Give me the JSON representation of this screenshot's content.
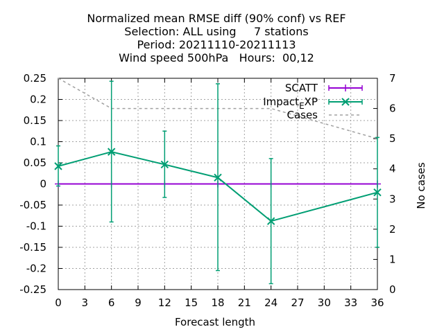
{
  "chart_data": {
    "type": "line",
    "title_lines": [
      "Normalized mean RMSE diff (90% conf) vs REF",
      "Selection: ALL using     7 stations",
      "Period: 20211110-20211113",
      "Wind speed 500hPa   Hours:  00,12"
    ],
    "xlabel": "Forecast length",
    "ylabel": "",
    "y2label": "No cases",
    "xlim": [
      0,
      36
    ],
    "ylim": [
      -0.25,
      0.25
    ],
    "y2lim": [
      0,
      7
    ],
    "x_ticks": [
      0,
      3,
      6,
      9,
      12,
      15,
      18,
      21,
      24,
      27,
      30,
      33,
      36
    ],
    "y_ticks": [
      -0.25,
      -0.2,
      -0.15,
      -0.1,
      -0.05,
      0,
      0.05,
      0.1,
      0.15,
      0.2,
      0.25
    ],
    "y_tick_labels": [
      "-0.25",
      "-0.2",
      "-0.15",
      "-0.1",
      "-0.05",
      "0",
      "0.05",
      "0.1",
      "0.15",
      "0.2",
      "0.25"
    ],
    "y2_ticks": [
      0,
      1,
      2,
      3,
      4,
      5,
      6,
      7
    ],
    "grid": true,
    "legend_position": "top-right",
    "series": [
      {
        "name": "SCATT",
        "color": "#9400d3",
        "marker": "plus",
        "axis": "y",
        "x": [
          0,
          6,
          12,
          18,
          24,
          36
        ],
        "y": [
          0,
          0,
          0,
          0,
          0,
          0
        ],
        "err_low": [
          0,
          0,
          0,
          0,
          0,
          0
        ],
        "err_high": [
          0,
          0,
          0,
          0,
          0,
          0
        ]
      },
      {
        "name": "Impact_EXP",
        "legend_main": "Impact",
        "legend_sub": "E",
        "legend_tail": "XP",
        "color": "#009e73",
        "marker": "x",
        "axis": "y",
        "x": [
          0,
          6,
          12,
          18,
          24,
          36
        ],
        "y": [
          0.042,
          0.076,
          0.046,
          0.015,
          -0.088,
          -0.02
        ],
        "err_low": [
          -0.005,
          -0.09,
          -0.032,
          -0.205,
          -0.236,
          -0.15
        ],
        "err_high": [
          0.09,
          0.243,
          0.125,
          0.237,
          0.06,
          0.11
        ]
      },
      {
        "name": "Cases",
        "color": "#a0a0a0",
        "style": "dashed",
        "axis": "y2",
        "x": [
          0,
          6,
          12,
          18,
          24,
          36
        ],
        "y": [
          7,
          6,
          6,
          6,
          6,
          5
        ]
      }
    ]
  }
}
